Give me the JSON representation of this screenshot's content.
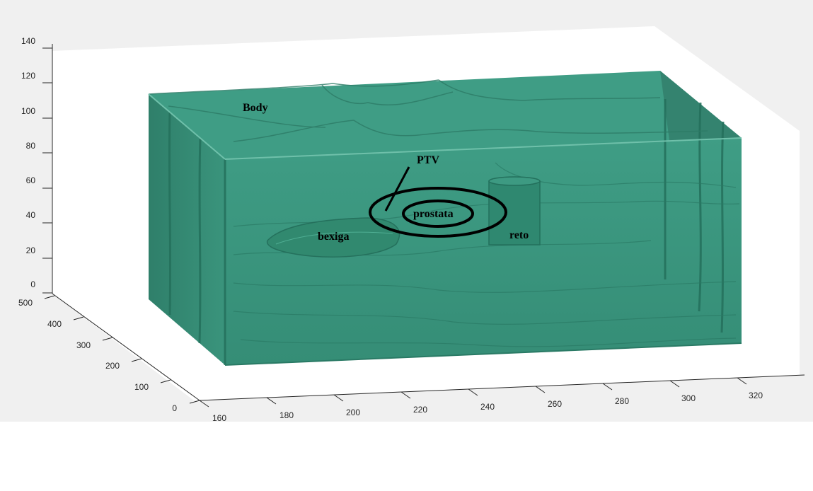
{
  "colors": {
    "figure_background": "#f0f0f0",
    "axes_background": "#ffffff",
    "body_surface": "#3d9a82",
    "body_edge": "#2a7a65",
    "outline": "#000000"
  },
  "axes": {
    "z_ticks": [
      "0",
      "20",
      "40",
      "60",
      "80",
      "100",
      "120",
      "140"
    ],
    "y_ticks": [
      "0",
      "100",
      "200",
      "300",
      "400",
      "500"
    ],
    "x_ticks": [
      "160",
      "180",
      "200",
      "220",
      "240",
      "260",
      "280",
      "300",
      "320"
    ]
  },
  "structures": {
    "body": "Body",
    "ptv": "PTV",
    "prostate": "prostata",
    "bladder": "bexiga",
    "rectum": "reto"
  }
}
